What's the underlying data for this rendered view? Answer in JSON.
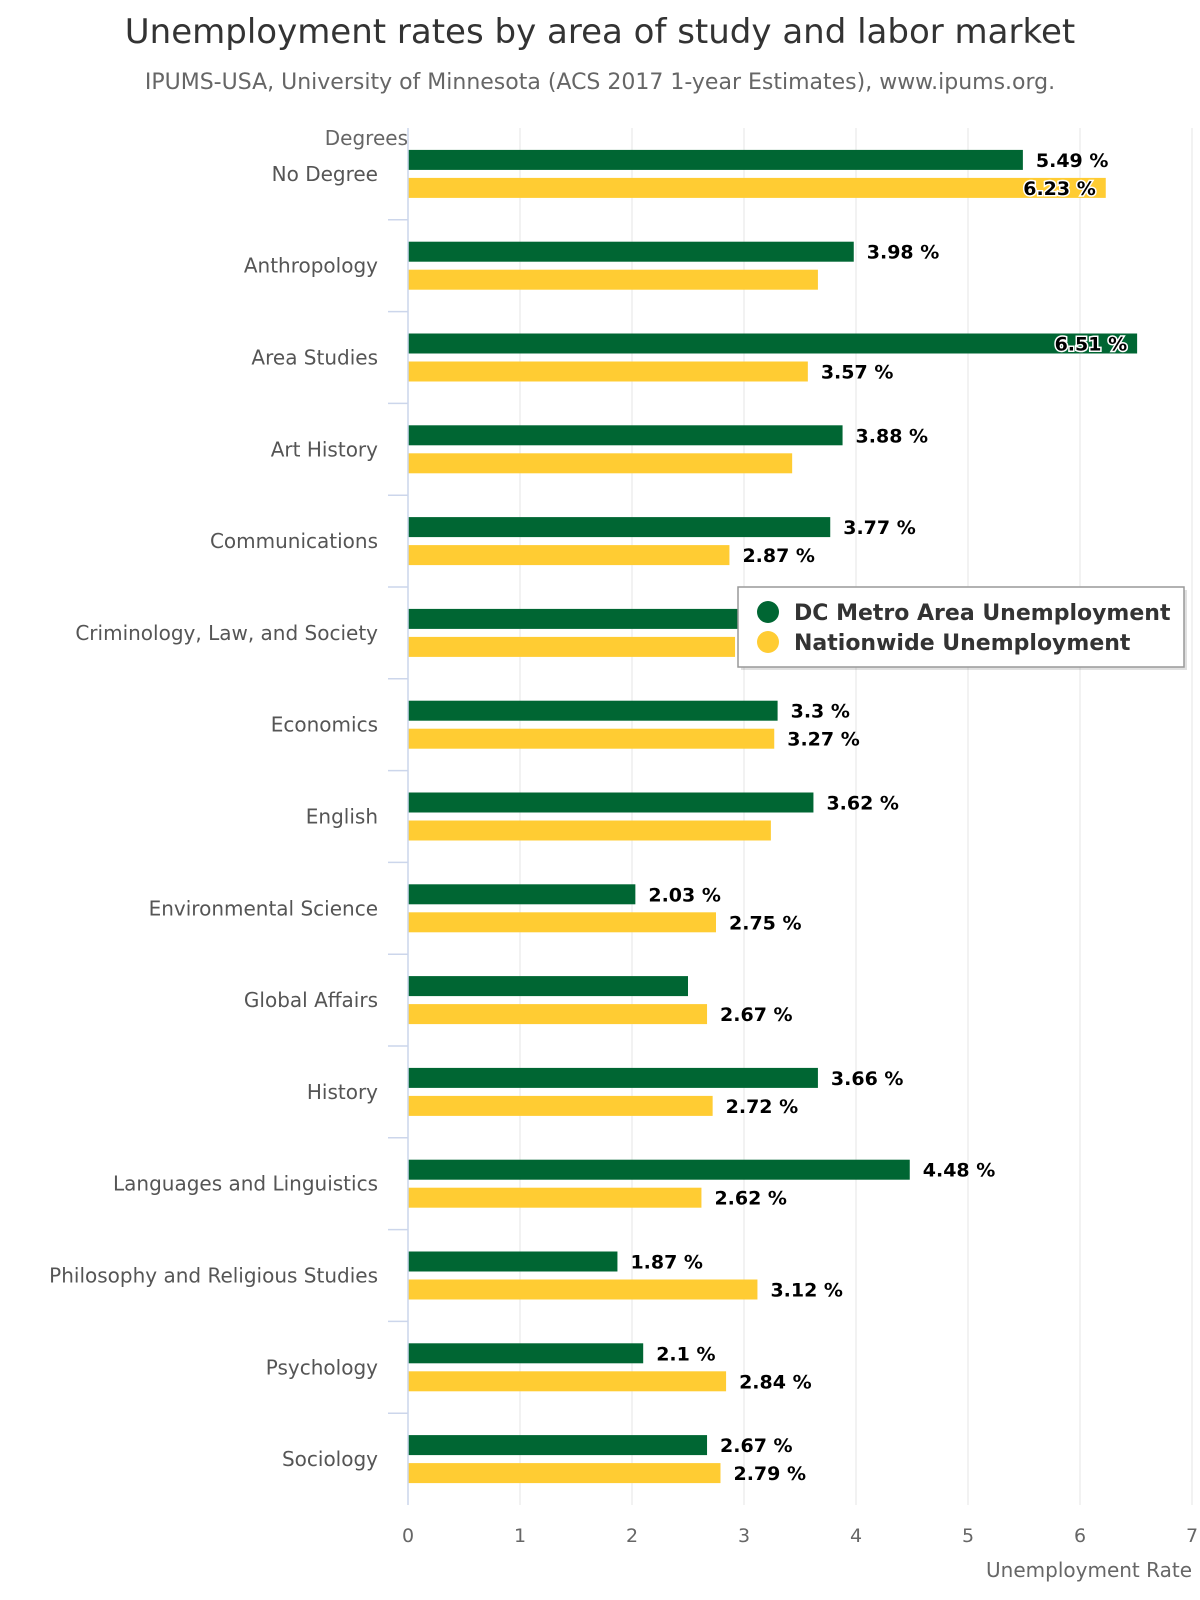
{
  "chart_data": {
    "type": "bar",
    "orientation": "horizontal",
    "title": "Unemployment rates by area of study and labor market",
    "subtitle": "IPUMS-USA, University of Minnesota (ACS 2017 1-year Estimates), www.ipums.org.",
    "xlabel": "Unemployment Rate",
    "ylabel": "Degrees",
    "xlim": [
      0,
      7
    ],
    "x_ticks": [
      "0",
      "1",
      "2",
      "3",
      "4",
      "5",
      "6",
      "7"
    ],
    "grid": true,
    "legend_position": "right",
    "categories": [
      "No Degree",
      "Anthropology",
      "Area Studies",
      "Art History",
      "Communications",
      "Criminology, Law, and Society",
      "Economics",
      "English",
      "Environmental Science",
      "Global Affairs",
      "History",
      "Languages and Linguistics",
      "Philosophy and Religious Studies",
      "Psychology",
      "Sociology"
    ],
    "series": [
      {
        "name": "DC Metro Area Unemployment",
        "color": "#006633",
        "values": [
          5.49,
          3.98,
          6.51,
          3.88,
          3.77,
          3.0,
          3.3,
          3.62,
          2.03,
          2.5,
          3.66,
          4.48,
          1.87,
          2.1,
          2.67
        ],
        "labels": [
          "5.49 %",
          "3.98 %",
          "6.51 %",
          "3.88 %",
          "3.77 %",
          "",
          "3.3 %",
          "3.62 %",
          "2.03 %",
          "",
          "3.66 %",
          "4.48 %",
          "1.87 %",
          "2.1 %",
          "2.67 %"
        ]
      },
      {
        "name": "Nationwide Unemployment",
        "color": "#FFCC33",
        "values": [
          6.23,
          3.66,
          3.57,
          3.43,
          2.87,
          2.92,
          3.27,
          3.24,
          2.75,
          2.67,
          2.72,
          2.62,
          3.12,
          2.84,
          2.79
        ],
        "labels": [
          "6.23 %",
          "",
          "3.57 %",
          "",
          "2.87 %",
          "",
          "3.27 %",
          "",
          "2.75 %",
          "2.67 %",
          "2.72 %",
          "2.62 %",
          "3.12 %",
          "2.84 %",
          "2.79 %"
        ]
      }
    ]
  }
}
